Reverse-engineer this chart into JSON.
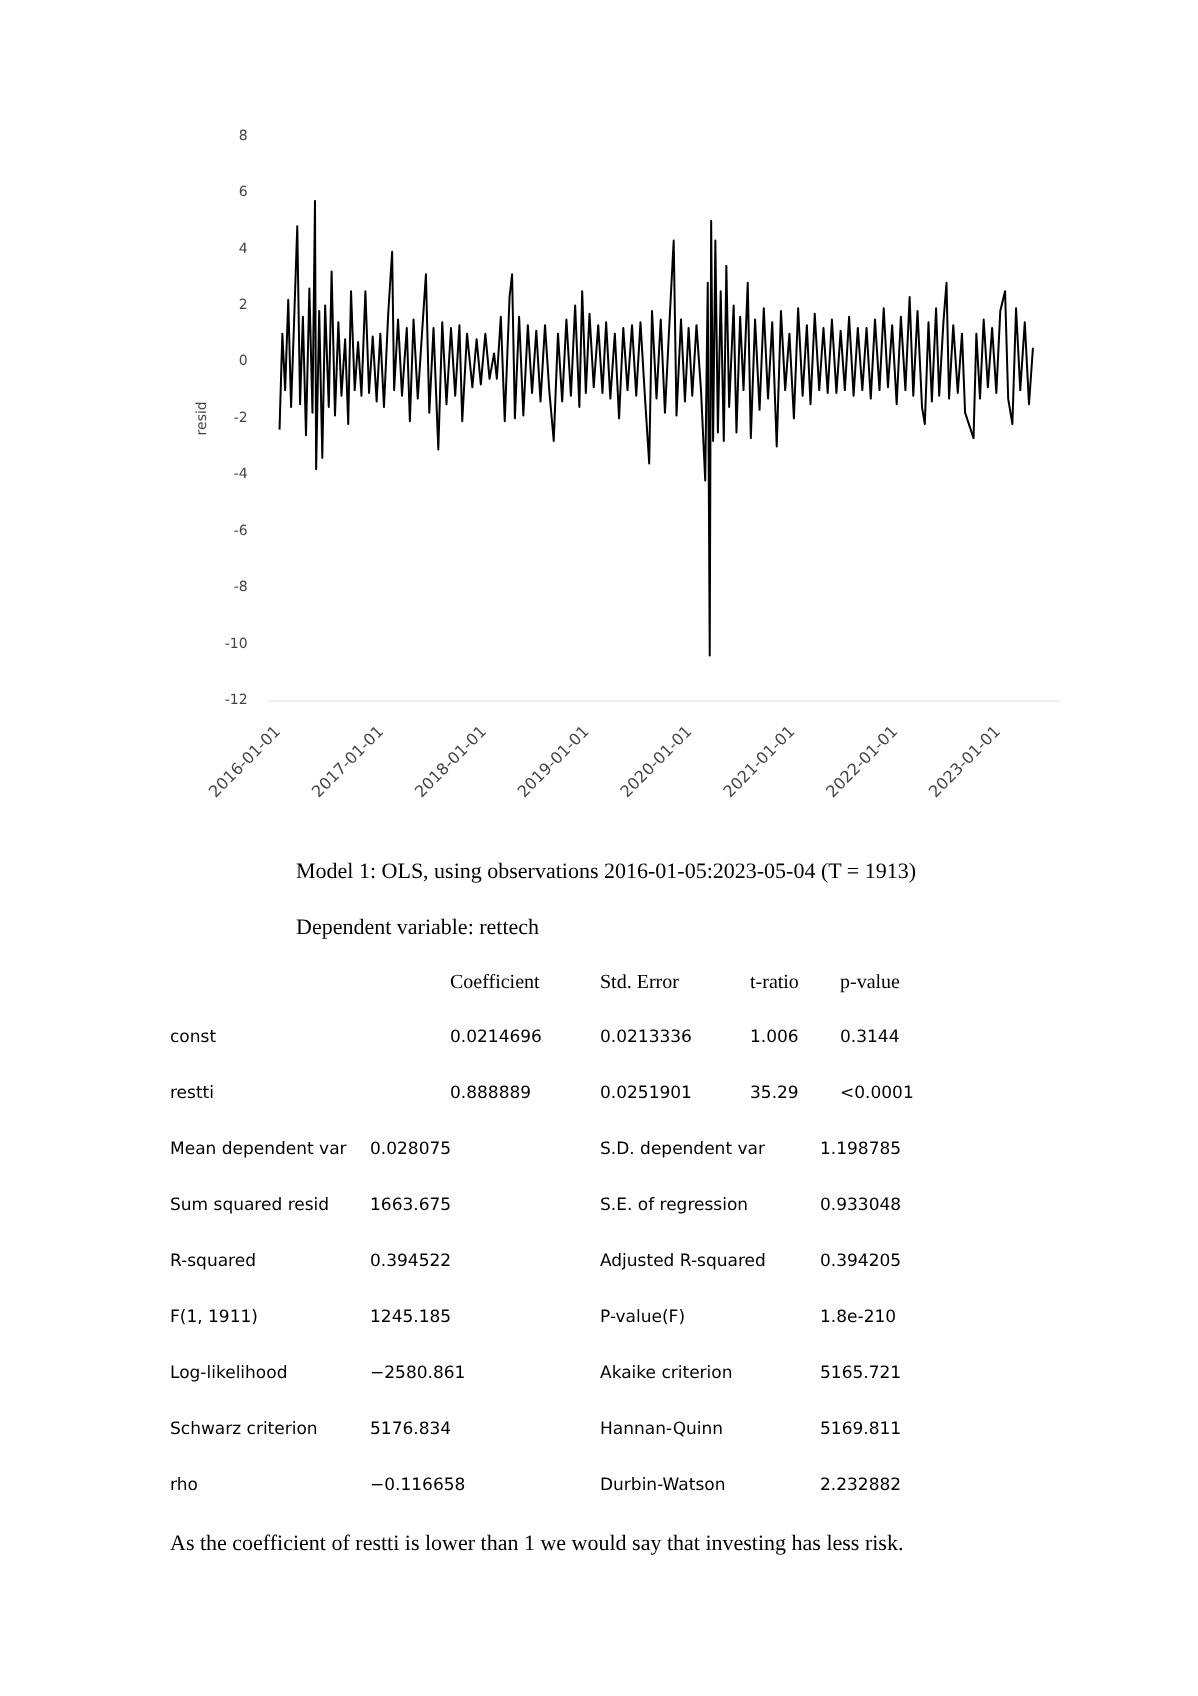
{
  "chart_data": {
    "type": "line",
    "ylabel": "resid",
    "grid": false,
    "legend": false,
    "marker": "none",
    "line_style": "solid",
    "xlim": [
      "2015-12-01",
      "2023-08-01"
    ],
    "xticks": [
      "2016-01-01",
      "2017-01-01",
      "2018-01-01",
      "2019-01-01",
      "2020-01-01",
      "2021-01-01",
      "2022-01-01",
      "2023-01-01"
    ],
    "ylim": [
      -12,
      8
    ],
    "yticks": [
      -12,
      -10,
      -8,
      -6,
      -4,
      -2,
      0,
      2,
      4,
      6,
      8
    ],
    "x": [
      "2016-01-05",
      "2016-01-15",
      "2016-01-25",
      "2016-02-05",
      "2016-02-15",
      "2016-02-25",
      "2016-03-08",
      "2016-03-18",
      "2016-03-28",
      "2016-04-08",
      "2016-04-20",
      "2016-05-01",
      "2016-05-10",
      "2016-05-14",
      "2016-05-25",
      "2016-06-05",
      "2016-06-15",
      "2016-06-28",
      "2016-07-08",
      "2016-07-20",
      "2016-08-01",
      "2016-08-12",
      "2016-08-25",
      "2016-09-05",
      "2016-09-15",
      "2016-09-28",
      "2016-10-10",
      "2016-10-22",
      "2016-11-05",
      "2016-11-18",
      "2016-12-01",
      "2016-12-15",
      "2016-12-28",
      "2017-01-10",
      "2017-01-25",
      "2017-02-08",
      "2017-02-15",
      "2017-03-01",
      "2017-03-15",
      "2017-04-01",
      "2017-04-12",
      "2017-04-25",
      "2017-05-10",
      "2017-05-25",
      "2017-06-08",
      "2017-06-20",
      "2017-07-05",
      "2017-07-22",
      "2017-08-05",
      "2017-08-20",
      "2017-09-05",
      "2017-09-20",
      "2017-10-05",
      "2017-10-15",
      "2017-11-01",
      "2017-11-20",
      "2017-12-05",
      "2017-12-20",
      "2018-01-05",
      "2018-01-20",
      "2018-02-05",
      "2018-02-15",
      "2018-03-01",
      "2018-03-15",
      "2018-04-01",
      "2018-04-10",
      "2018-04-20",
      "2018-05-05",
      "2018-05-20",
      "2018-06-05",
      "2018-06-20",
      "2018-07-05",
      "2018-07-20",
      "2018-08-05",
      "2018-08-20",
      "2018-09-05",
      "2018-09-20",
      "2018-10-05",
      "2018-10-20",
      "2018-11-05",
      "2018-11-20",
      "2018-12-05",
      "2018-12-15",
      "2018-12-28",
      "2019-01-10",
      "2019-01-25",
      "2019-02-10",
      "2019-02-25",
      "2019-03-10",
      "2019-03-25",
      "2019-04-10",
      "2019-04-25",
      "2019-05-10",
      "2019-05-25",
      "2019-06-10",
      "2019-06-25",
      "2019-07-10",
      "2019-07-25",
      "2019-08-10",
      "2019-08-20",
      "2019-09-05",
      "2019-09-20",
      "2019-10-05",
      "2019-10-20",
      "2019-11-05",
      "2019-11-15",
      "2019-12-01",
      "2019-12-15",
      "2019-12-28",
      "2020-01-10",
      "2020-01-25",
      "2020-02-10",
      "2020-02-25",
      "2020-03-05",
      "2020-03-12",
      "2020-03-17",
      "2020-03-24",
      "2020-04-01",
      "2020-04-10",
      "2020-04-20",
      "2020-05-01",
      "2020-05-10",
      "2020-05-20",
      "2020-06-05",
      "2020-06-15",
      "2020-06-28",
      "2020-07-10",
      "2020-07-25",
      "2020-08-05",
      "2020-08-20",
      "2020-09-05",
      "2020-09-20",
      "2020-10-05",
      "2020-10-20",
      "2020-11-05",
      "2020-11-20",
      "2020-12-05",
      "2020-12-20",
      "2021-01-05",
      "2021-01-20",
      "2021-02-05",
      "2021-02-20",
      "2021-03-05",
      "2021-03-20",
      "2021-04-05",
      "2021-04-20",
      "2021-05-05",
      "2021-05-20",
      "2021-06-05",
      "2021-06-20",
      "2021-07-05",
      "2021-07-20",
      "2021-08-05",
      "2021-08-20",
      "2021-09-05",
      "2021-09-20",
      "2021-10-05",
      "2021-10-20",
      "2021-11-05",
      "2021-11-20",
      "2021-12-05",
      "2021-12-20",
      "2022-01-05",
      "2022-01-20",
      "2022-02-05",
      "2022-02-20",
      "2022-03-05",
      "2022-03-20",
      "2022-04-05",
      "2022-04-15",
      "2022-04-28",
      "2022-05-10",
      "2022-05-25",
      "2022-06-05",
      "2022-06-20",
      "2022-07-01",
      "2022-07-10",
      "2022-07-25",
      "2022-08-10",
      "2022-08-25",
      "2022-09-05",
      "2022-10-05",
      "2022-10-15",
      "2022-10-28",
      "2022-11-10",
      "2022-11-25",
      "2022-12-10",
      "2022-12-25",
      "2023-01-08",
      "2023-01-25",
      "2023-02-05",
      "2023-02-20",
      "2023-03-05",
      "2023-03-20",
      "2023-04-05",
      "2023-04-20",
      "2023-05-04"
    ],
    "series": [
      {
        "color": "#000000",
        "values": [
          -2.4,
          1.0,
          -1.0,
          2.2,
          -1.6,
          1.2,
          4.8,
          -1.5,
          1.6,
          -2.6,
          2.6,
          -1.8,
          5.7,
          -3.8,
          1.8,
          -3.4,
          2.0,
          -1.6,
          3.2,
          -1.9,
          1.4,
          -1.2,
          0.8,
          -2.2,
          2.5,
          -1.0,
          0.7,
          -1.2,
          2.5,
          -1.1,
          0.9,
          -1.4,
          1.0,
          -1.6,
          1.7,
          3.9,
          -1.0,
          1.5,
          -1.2,
          1.2,
          -2.1,
          1.5,
          -1.3,
          1.0,
          3.1,
          -1.8,
          1.2,
          -3.1,
          1.4,
          -1.5,
          1.2,
          -1.2,
          1.3,
          -2.1,
          1.0,
          -0.9,
          0.8,
          -0.8,
          1.0,
          -0.6,
          0.3,
          -0.6,
          1.6,
          -2.1,
          2.3,
          3.1,
          -2.0,
          1.6,
          -1.9,
          1.3,
          -1.1,
          1.1,
          -1.4,
          1.3,
          -1.0,
          -2.8,
          1.0,
          -1.4,
          1.5,
          -1.2,
          2.0,
          -1.6,
          2.5,
          -1.1,
          1.7,
          -0.9,
          1.3,
          -1.1,
          1.4,
          -1.3,
          1.0,
          -2.0,
          1.2,
          -1.0,
          1.3,
          -1.2,
          1.4,
          -1.1,
          -3.6,
          1.8,
          -1.3,
          1.5,
          -1.8,
          1.2,
          4.3,
          -1.9,
          1.5,
          -1.4,
          1.2,
          -1.2,
          1.3,
          -1.0,
          -4.2,
          2.8,
          -10.4,
          5.0,
          -2.8,
          4.3,
          -2.5,
          2.5,
          -2.8,
          3.4,
          -1.6,
          2.0,
          -2.5,
          1.6,
          -1.0,
          2.8,
          -2.7,
          1.5,
          -1.7,
          1.9,
          -1.3,
          1.4,
          -3.0,
          1.8,
          -1.0,
          1.0,
          -2.0,
          1.9,
          -1.2,
          1.3,
          -1.5,
          1.7,
          -1.0,
          1.2,
          -1.1,
          1.5,
          -1.1,
          1.1,
          -1.0,
          1.6,
          -1.2,
          1.2,
          -1.0,
          1.2,
          -1.3,
          1.5,
          -1.0,
          1.9,
          -0.9,
          1.3,
          -1.5,
          1.6,
          -1.0,
          2.3,
          -1.2,
          1.8,
          -1.6,
          -2.2,
          1.4,
          -1.4,
          1.9,
          -1.2,
          1.4,
          2.8,
          -1.3,
          1.3,
          -1.1,
          1.0,
          -1.8,
          -2.7,
          1.0,
          -1.3,
          1.5,
          -0.9,
          1.2,
          -1.1,
          1.8,
          2.5,
          -1.3,
          -2.2,
          1.9,
          -1.0,
          1.4,
          -1.5,
          0.5
        ]
      }
    ],
    "annotations": [
      "Model 1: OLS, using observations 2016-01-05:2023-05-04 (T = 1913)",
      "Dependent variable: rettech",
      "\tCoefficient\tStd. Error\tt-ratio\tp-value",
      "const\t0.0214696\t0.0213336\t1.006\t0.3144",
      "restti\t0.888889\t0.0251901\t35.29\t<0.0001",
      "Mean dependent var\t0.028075\tS.D. dependent var\t1.198785",
      "Sum squared resid\t1663.675\tS.E. of regression\t0.933048",
      "R-squared\t0.394522\tAdjusted R-squared\t0.394205",
      "F(1, 1911)\t1245.185\tP-value(F)\t1.8e-210",
      "Log-likelihood\t−2580.861\tAkaike criterion\t5165.721",
      "Schwarz criterion\t5176.834\tHannan-Quinn\t5169.811",
      "rho\t−0.116658\tDurbin-Watson\t2.232882",
      "As the coefficient of restti is lower than 1 we would say that investing has less risk."
    ]
  }
}
